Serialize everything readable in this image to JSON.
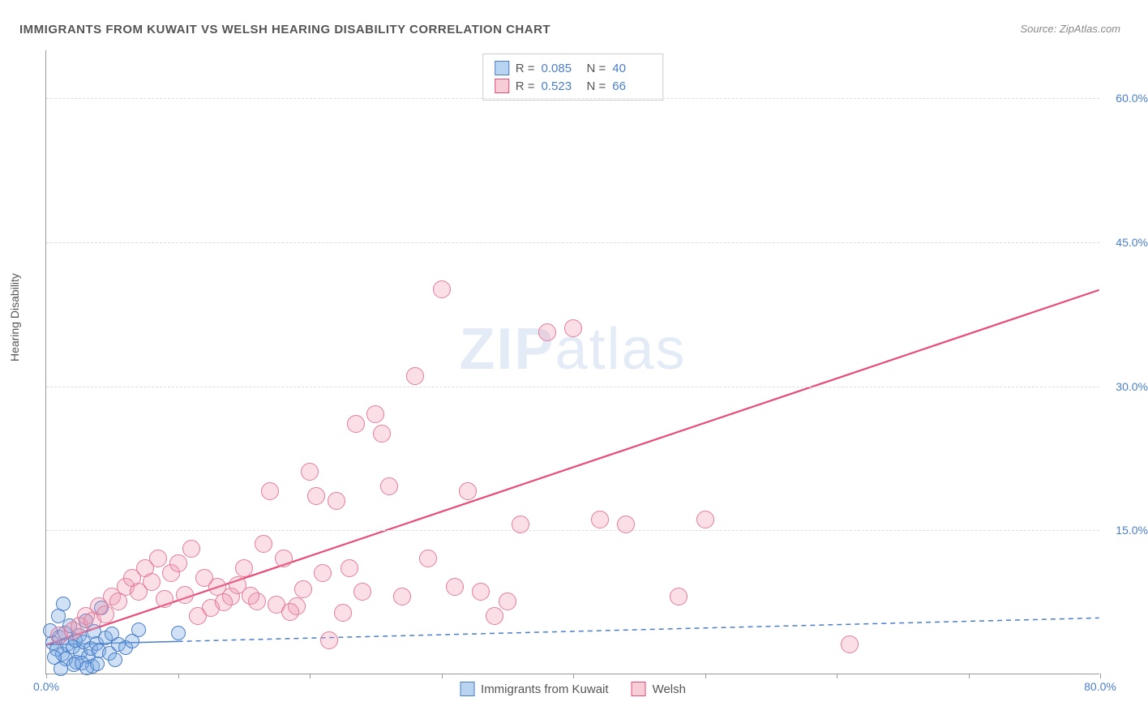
{
  "title": "IMMIGRANTS FROM KUWAIT VS WELSH HEARING DISABILITY CORRELATION CHART",
  "source": "Source: ZipAtlas.com",
  "ylabel": "Hearing Disability",
  "watermark_bold": "ZIP",
  "watermark_rest": "atlas",
  "chart": {
    "type": "scatter",
    "xlim": [
      0,
      80
    ],
    "ylim": [
      0,
      65
    ],
    "x_ticks": [
      0,
      10,
      20,
      30,
      40,
      50,
      60,
      70,
      80
    ],
    "x_tick_labels_shown": {
      "0": "0.0%",
      "80": "80.0%"
    },
    "y_ticks": [
      15,
      30,
      45,
      60
    ],
    "y_tick_labels": [
      "15.0%",
      "30.0%",
      "45.0%",
      "60.0%"
    ],
    "grid_color": "#dddddd",
    "axis_color": "#999999",
    "label_color": "#4a7ec9",
    "background": "#ffffff"
  },
  "series": [
    {
      "name": "Immigrants from Kuwait",
      "swatch_fill": "#b9d4f0",
      "swatch_stroke": "#4a7ec9",
      "marker_fill": "rgba(120,170,225,0.35)",
      "marker_stroke": "#4a7ec9",
      "marker_radius": 9,
      "R_label": "R =",
      "R": "0.085",
      "N_label": "N =",
      "N": "40",
      "trend": {
        "x1": 0,
        "y1": 3.0,
        "x2": 80,
        "y2": 5.8,
        "stroke": "#4a7ec9",
        "width": 1.5,
        "dash": "6,5",
        "solid_to_x": 10
      },
      "points": [
        [
          0.5,
          3.2
        ],
        [
          0.8,
          2.5
        ],
        [
          1.0,
          3.8
        ],
        [
          1.2,
          2.0
        ],
        [
          1.4,
          4.2
        ],
        [
          1.5,
          1.5
        ],
        [
          1.6,
          3.0
        ],
        [
          1.8,
          5.0
        ],
        [
          2.0,
          2.8
        ],
        [
          2.2,
          3.5
        ],
        [
          2.3,
          1.2
        ],
        [
          2.5,
          4.0
        ],
        [
          2.6,
          2.2
        ],
        [
          2.8,
          3.3
        ],
        [
          3.0,
          5.5
        ],
        [
          3.2,
          1.8
        ],
        [
          3.4,
          2.6
        ],
        [
          3.5,
          0.8
        ],
        [
          3.6,
          4.4
        ],
        [
          3.8,
          3.1
        ],
        [
          4.0,
          2.4
        ],
        [
          4.2,
          6.8
        ],
        [
          4.5,
          3.7
        ],
        [
          4.8,
          2.1
        ],
        [
          5.0,
          4.1
        ],
        [
          5.2,
          1.4
        ],
        [
          5.5,
          3.0
        ],
        [
          6.0,
          2.7
        ],
        [
          6.5,
          3.4
        ],
        [
          7.0,
          4.6
        ],
        [
          1.1,
          0.5
        ],
        [
          2.1,
          0.9
        ],
        [
          2.7,
          1.1
        ],
        [
          3.1,
          0.6
        ],
        [
          3.9,
          1.0
        ],
        [
          0.3,
          4.5
        ],
        [
          0.6,
          1.7
        ],
        [
          0.9,
          6.0
        ],
        [
          1.3,
          7.3
        ],
        [
          10.0,
          4.2
        ]
      ]
    },
    {
      "name": "Welsh",
      "swatch_fill": "#f7cdd7",
      "swatch_stroke": "#e94b77",
      "marker_fill": "rgba(240,150,175,0.30)",
      "marker_stroke": "#e57b9a",
      "marker_radius": 11,
      "R_label": "R =",
      "R": "0.523",
      "N_label": "N =",
      "N": "66",
      "trend": {
        "x1": 0,
        "y1": 3.0,
        "x2": 80,
        "y2": 40.0,
        "stroke": "#e94b77",
        "width": 2.2,
        "dash": null
      },
      "points": [
        [
          1,
          4
        ],
        [
          2,
          4.5
        ],
        [
          2.5,
          5
        ],
        [
          3,
          6
        ],
        [
          3.5,
          5.5
        ],
        [
          4,
          7
        ],
        [
          4.5,
          6.2
        ],
        [
          5,
          8
        ],
        [
          5.5,
          7.5
        ],
        [
          6,
          9
        ],
        [
          6.5,
          10
        ],
        [
          7,
          8.5
        ],
        [
          7.5,
          11
        ],
        [
          8,
          9.5
        ],
        [
          8.5,
          12
        ],
        [
          9,
          7.8
        ],
        [
          9.5,
          10.5
        ],
        [
          10,
          11.5
        ],
        [
          10.5,
          8.2
        ],
        [
          11,
          13
        ],
        [
          12,
          10
        ],
        [
          13,
          9
        ],
        [
          14,
          8
        ],
        [
          15,
          11
        ],
        [
          16,
          7.5
        ],
        [
          16.5,
          13.5
        ],
        [
          17,
          19
        ],
        [
          18,
          12
        ],
        [
          19,
          7
        ],
        [
          20,
          21
        ],
        [
          21,
          10.5
        ],
        [
          22,
          18
        ],
        [
          23,
          11
        ],
        [
          23.5,
          26
        ],
        [
          24,
          8.5
        ],
        [
          25,
          27
        ],
        [
          25.5,
          25
        ],
        [
          26,
          19.5
        ],
        [
          27,
          8
        ],
        [
          28,
          31
        ],
        [
          29,
          12
        ],
        [
          30,
          40
        ],
        [
          31,
          9
        ],
        [
          32,
          19
        ],
        [
          33,
          8.5
        ],
        [
          34,
          6
        ],
        [
          35,
          7.5
        ],
        [
          36,
          15.5
        ],
        [
          38,
          35.5
        ],
        [
          40,
          36
        ],
        [
          42,
          16
        ],
        [
          44,
          15.5
        ],
        [
          48,
          8
        ],
        [
          50,
          16
        ],
        [
          61,
          3
        ],
        [
          11.5,
          6
        ],
        [
          12.5,
          6.8
        ],
        [
          13.5,
          7.4
        ],
        [
          14.5,
          9.2
        ],
        [
          15.5,
          8.1
        ],
        [
          17.5,
          7.2
        ],
        [
          18.5,
          6.4
        ],
        [
          19.5,
          8.8
        ],
        [
          20.5,
          18.5
        ],
        [
          21.5,
          3.5
        ],
        [
          22.5,
          6.3
        ]
      ]
    }
  ]
}
